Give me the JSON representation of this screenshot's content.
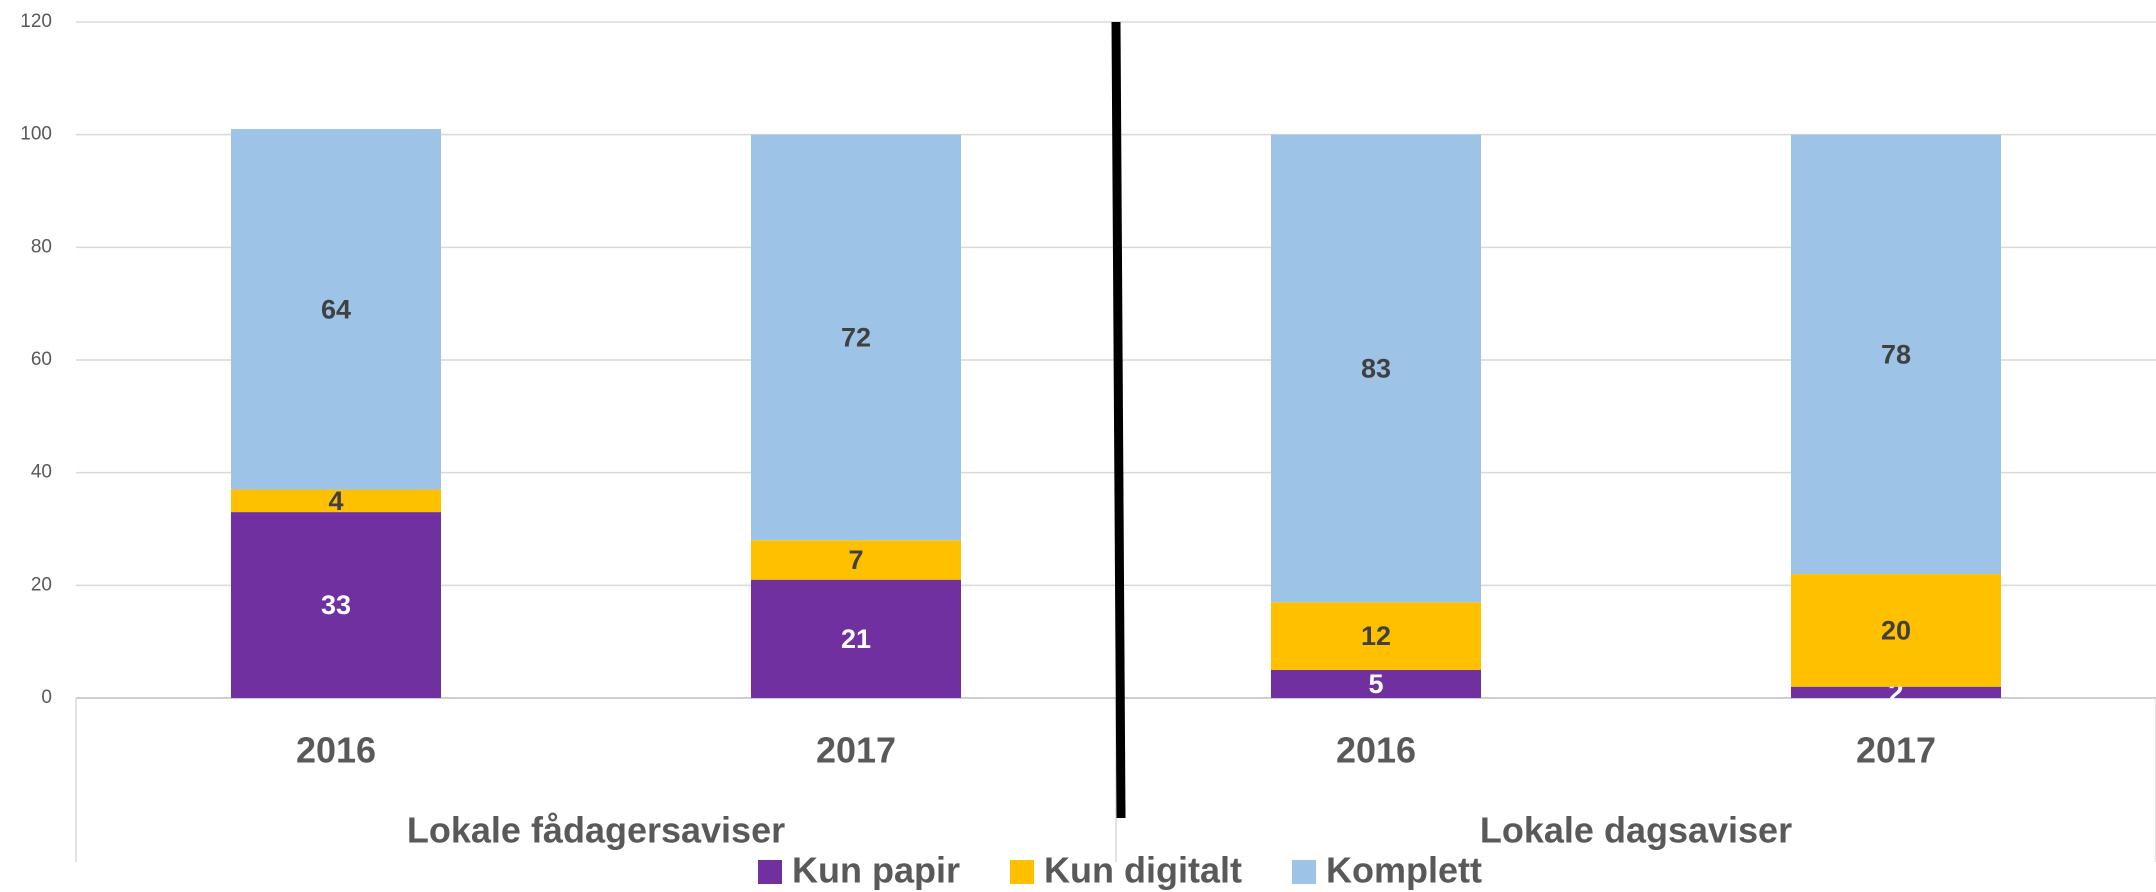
{
  "chart_data": {
    "type": "stacked_bar",
    "categories": [
      "2016",
      "2017",
      "2016",
      "2017"
    ],
    "groups": [
      "Lokale fådagersaviser",
      "Lokale dagsaviser"
    ],
    "series": [
      {
        "name": "Kun papir",
        "color": "#7030a0",
        "values": [
          33,
          21,
          5,
          2
        ]
      },
      {
        "name": "Kun digitalt",
        "color": "#ffc000",
        "values": [
          4,
          7,
          12,
          20
        ]
      },
      {
        "name": "Komplett",
        "color": "#9dc3e6",
        "values": [
          64,
          72,
          83,
          78
        ]
      }
    ],
    "ylim": [
      0,
      120
    ],
    "yticks": [
      0,
      20,
      40,
      60,
      80,
      100,
      120
    ],
    "grid": true,
    "legend": "bottom"
  }
}
